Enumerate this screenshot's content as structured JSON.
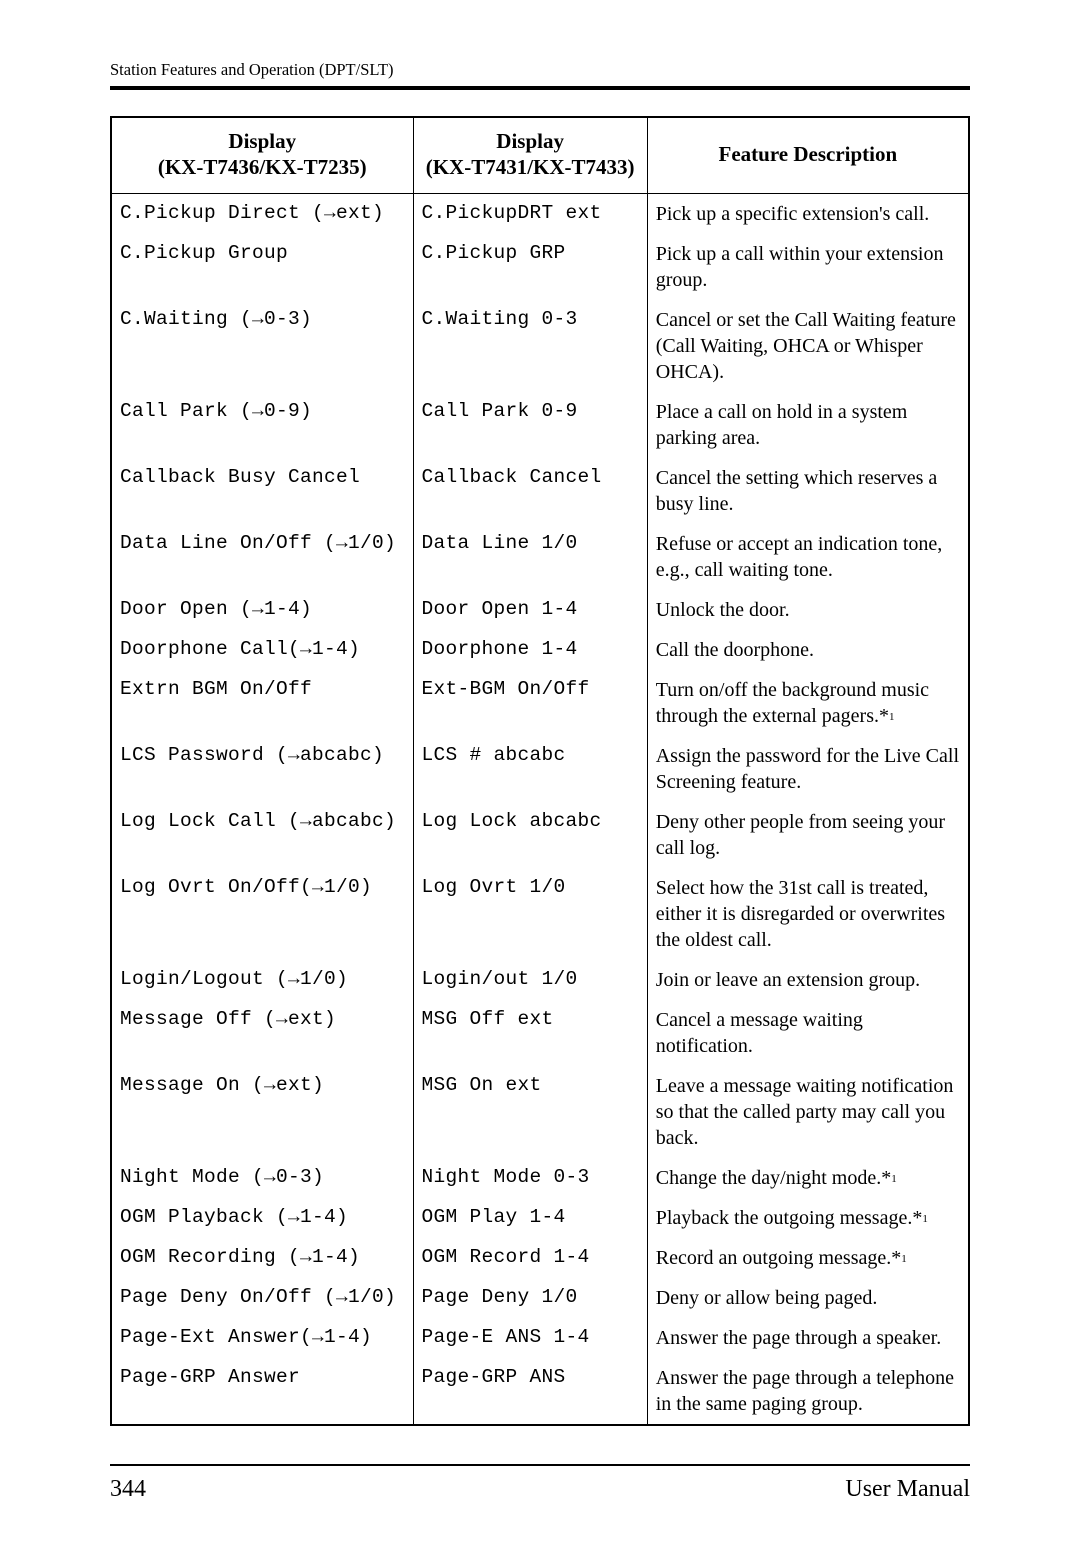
{
  "header": {
    "section_title": "Station Features and Operation (DPT/SLT)"
  },
  "table": {
    "headers": {
      "col1_line1": "Display",
      "col1_line2": "(KX-T7436/KX-T7235)",
      "col2_line1": "Display",
      "col2_line2": "(KX-T7431/KX-T7433)",
      "col3": "Feature Description"
    },
    "rows": [
      {
        "d1": "C.Pickup Direct (→ext)",
        "d2": "C.PickupDRT ext",
        "desc": "Pick up a specific extension's call."
      },
      {
        "d1": "C.Pickup Group",
        "d2": "C.Pickup GRP",
        "desc": "Pick up a call within your extension group."
      },
      {
        "d1": "C.Waiting (→0-3)",
        "d2": "C.Waiting 0-3",
        "desc": "Cancel or set the Call Waiting feature (Call Waiting, OHCA or Whisper OHCA)."
      },
      {
        "d1": "Call Park (→0-9)",
        "d2": "Call Park 0-9",
        "desc": "Place a call on hold in a system parking area."
      },
      {
        "d1": "Callback Busy Cancel",
        "d2": "Callback Cancel",
        "desc": "Cancel the setting which reserves a busy line."
      },
      {
        "d1": "Data Line On/Off (→1/0)",
        "d2": "Data Line 1/0",
        "desc": "Refuse or accept an indication tone, e.g., call waiting tone."
      },
      {
        "d1": "Door Open (→1-4)",
        "d2": "Door Open 1-4",
        "desc": "Unlock the door."
      },
      {
        "d1": "Doorphone Call(→1-4)",
        "d2": "Doorphone 1-4",
        "desc": "Call the doorphone."
      },
      {
        "d1": "Extrn BGM On/Off",
        "d2": "Ext-BGM On/Off",
        "desc": "Turn on/off the background music through the external pagers.*",
        "sup": "1"
      },
      {
        "d1": "LCS Password (→abcabc)",
        "d2": "LCS # abcabc",
        "desc": "Assign the password for the Live Call Screening feature."
      },
      {
        "d1": "Log Lock Call (→abcabc)",
        "d2": "Log Lock abcabc",
        "desc": "Deny other people from seeing your call log."
      },
      {
        "d1": "Log Ovrt On/Off(→1/0)",
        "d2": "Log Ovrt 1/0",
        "desc": "Select how the 31st call is treated, either it is disregarded or overwrites the oldest call."
      },
      {
        "d1": "Login/Logout (→1/0)",
        "d2": "Login/out 1/0",
        "desc": "Join or leave an extension group."
      },
      {
        "d1": "Message Off (→ext)",
        "d2": "MSG Off ext",
        "desc": "Cancel a message waiting notification."
      },
      {
        "d1": "Message On (→ext)",
        "d2": "MSG On ext",
        "desc": "Leave a message waiting notification so that the called party may call you back."
      },
      {
        "d1": "Night Mode (→0-3)",
        "d2": "Night Mode 0-3",
        "desc": "Change the day/night mode.*",
        "sup": "1"
      },
      {
        "d1": "OGM Playback (→1-4)",
        "d2": "OGM Play 1-4",
        "desc": "Playback the outgoing message.*",
        "sup": "1"
      },
      {
        "d1": "OGM Recording (→1-4)",
        "d2": "OGM Record 1-4",
        "desc": "Record an outgoing message.*",
        "sup": "1"
      },
      {
        "d1": "Page Deny On/Off (→1/0)",
        "d2": "Page Deny 1/0",
        "desc": "Deny or allow being paged."
      },
      {
        "d1": "Page-Ext Answer(→1-4)",
        "d2": "Page-E ANS 1-4",
        "desc": "Answer the page through a speaker."
      },
      {
        "d1": "Page-GRP Answer",
        "d2": "Page-GRP ANS",
        "desc": "Answer the page through a telephone in the same paging group."
      }
    ]
  },
  "footer": {
    "page_number": "344",
    "doc_title": "User Manual"
  }
}
